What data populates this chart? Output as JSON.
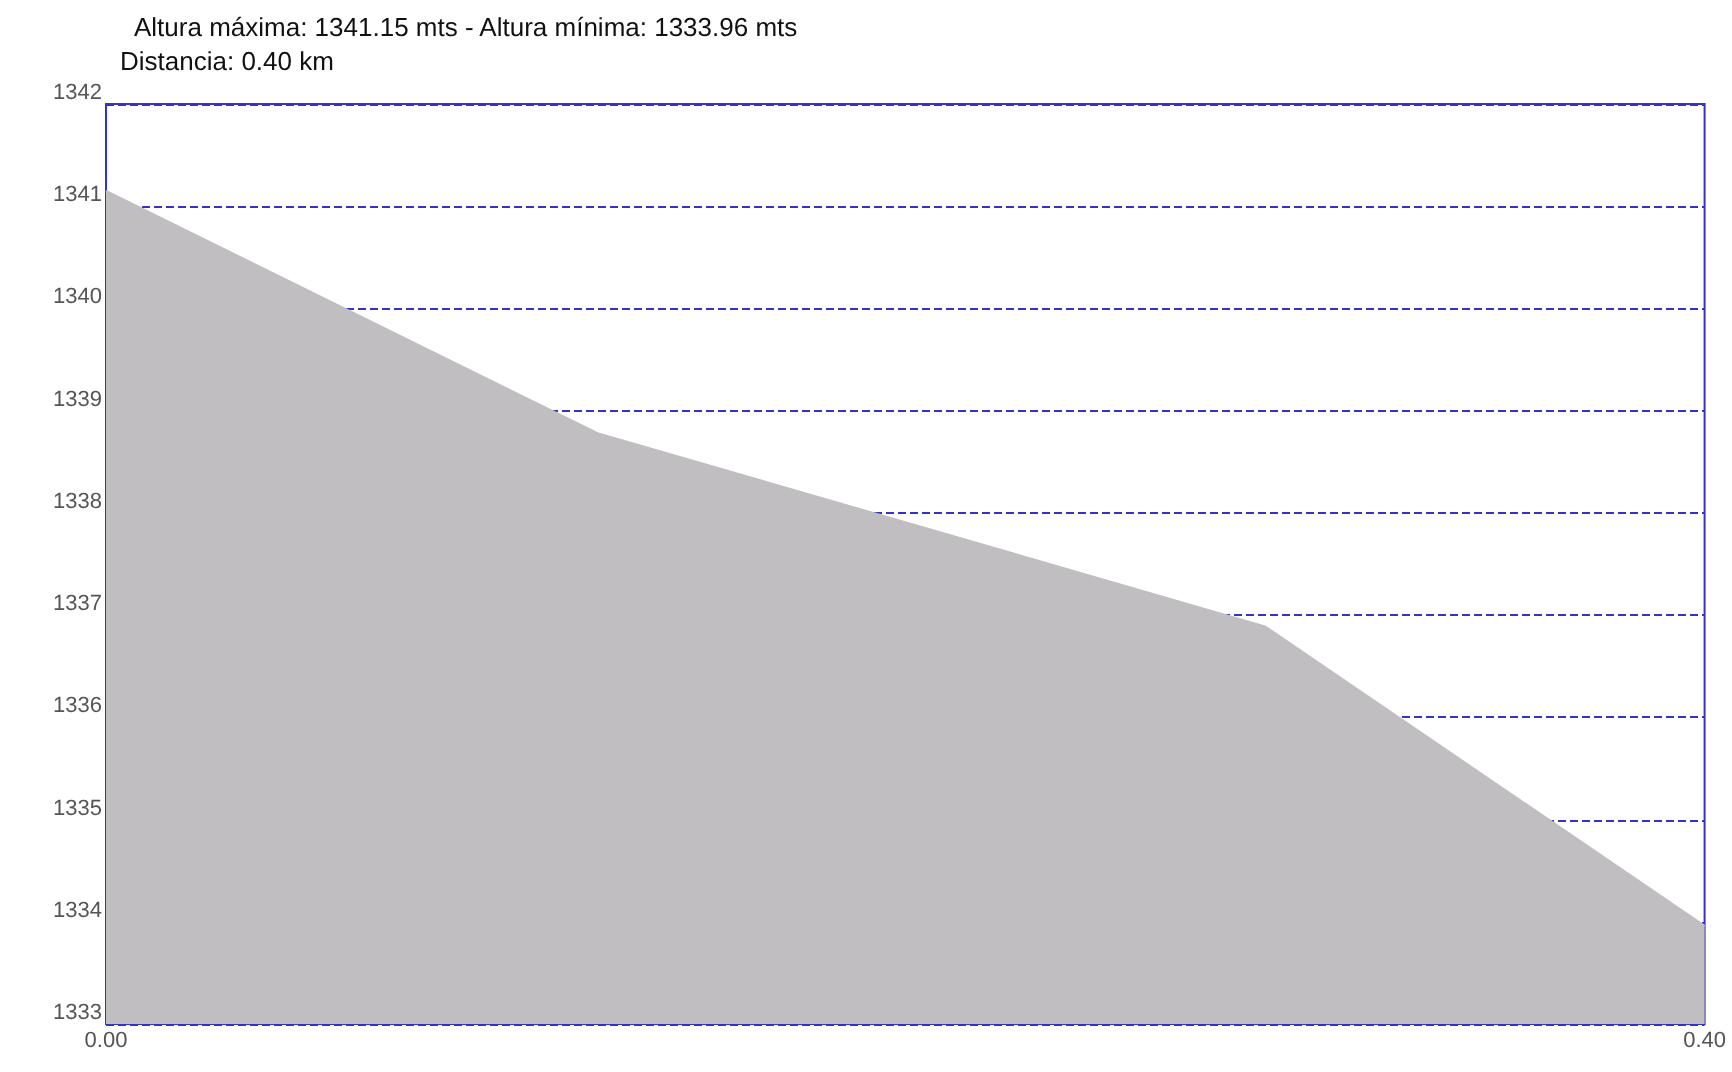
{
  "chart_data": {
    "type": "area",
    "title": "Altura máxima: 1341.15 mts - Altura mínima: 1333.96 mts",
    "subtitle": "Distancia: 0.40 km",
    "x": [
      0,
      0.123,
      0.29,
      0.4
    ],
    "series": [
      {
        "color": "#c0bec0",
        "values": [
          1341.15,
          1338.78,
          1336.89,
          1333.96
        ]
      }
    ],
    "xlim": [
      0,
      0.4
    ],
    "xticks": [
      {
        "value": 0,
        "label": "0.00"
      },
      {
        "value": 0.4,
        "label": "0.40"
      }
    ],
    "ylim": [
      1333,
      1342
    ],
    "yticks": [
      1333,
      1334,
      1335,
      1336,
      1337,
      1338,
      1339,
      1340,
      1341,
      1342
    ],
    "grid": "y",
    "line_style": "dashed",
    "marker": "none"
  }
}
